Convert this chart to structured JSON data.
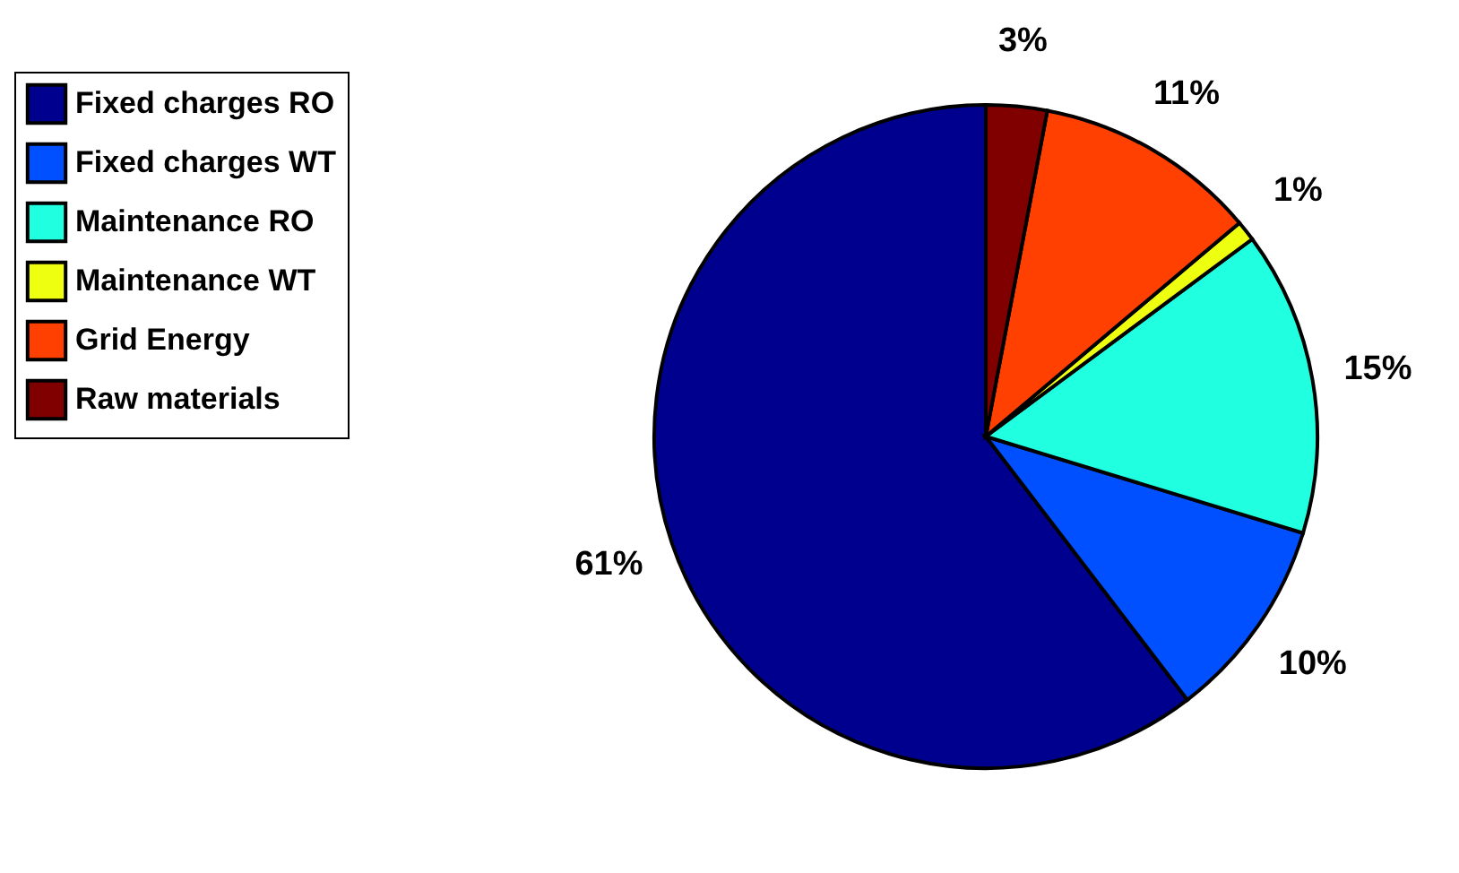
{
  "chart_data": {
    "type": "pie",
    "categories": [
      "Fixed charges RO",
      "Fixed charges WT",
      "Maintenance  RO",
      "Maintenance  WT",
      "Grid Energy",
      "Raw materials"
    ],
    "values": [
      61,
      10,
      15,
      1,
      11,
      3
    ],
    "value_labels": [
      "61%",
      "10%",
      "15%",
      "1%",
      "11%",
      "3%"
    ],
    "colors": [
      "#00008f",
      "#0050ff",
      "#20ffdf",
      "#efff10",
      "#ff4000",
      "#800000"
    ],
    "legend": "top left"
  }
}
